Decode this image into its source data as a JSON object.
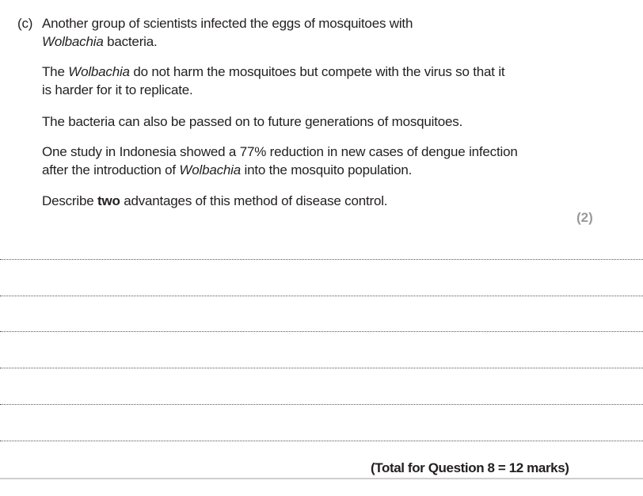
{
  "question": {
    "part_label": "(c)",
    "intro_line1": "Another group of scientists infected the eggs of mosquitoes with",
    "intro_line2_italic": "Wolbachia",
    "intro_line2_rest": " bacteria.",
    "p1_pre": "The ",
    "p1_italic": "Wolbachia",
    "p1_rest": " do not harm the mosquitoes but compete with the virus so that it",
    "p1_line2": "is harder for it to replicate.",
    "p2": "The bacteria can also be passed on to future generations of mosquitoes.",
    "p3_line1": "One study in Indonesia showed a 77% reduction in new cases of dengue infection",
    "p3_line2_pre": "after the introduction of ",
    "p3_line2_italic": "Wolbachia",
    "p3_line2_rest": " into the mosquito population.",
    "task_pre": "Describe ",
    "task_bold": "two",
    "task_rest": " advantages of this method of disease control.",
    "marks": "(2)"
  },
  "footer": {
    "total": "(Total for Question 8 = 12 marks)"
  }
}
